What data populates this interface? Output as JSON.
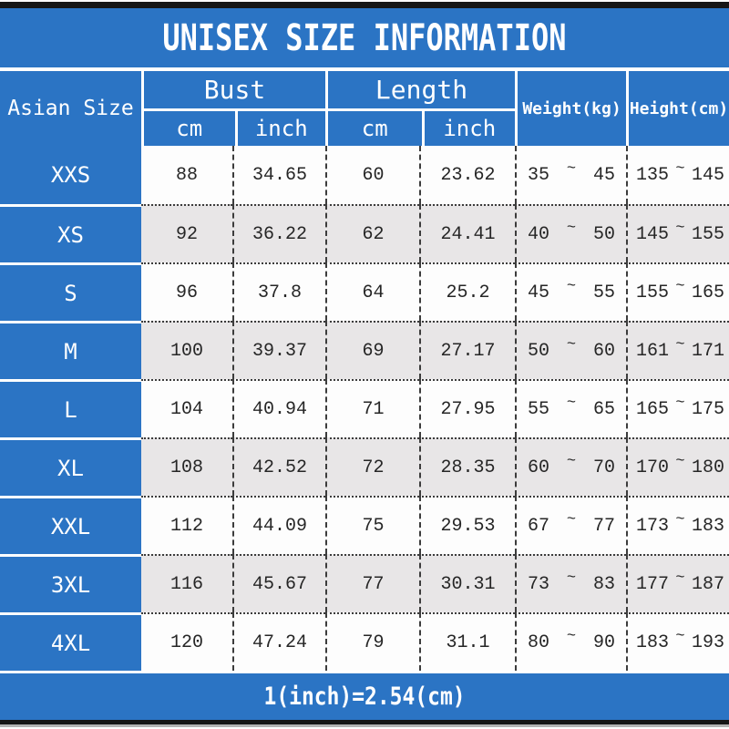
{
  "chart_data": {
    "type": "table",
    "title": "UNISEX SIZE INFORMATION",
    "columns": [
      "Asian Size",
      "Bust cm",
      "Bust inch",
      "Length cm",
      "Length inch",
      "Weight(kg)",
      "Height(cm)"
    ],
    "rows": [
      {
        "size": "XXS",
        "bust_cm": "88",
        "bust_inch": "34.65",
        "length_cm": "60",
        "length_inch": "23.62",
        "weight_min": "35",
        "weight_max": "45",
        "height_min": "135",
        "height_max": "145"
      },
      {
        "size": "XS",
        "bust_cm": "92",
        "bust_inch": "36.22",
        "length_cm": "62",
        "length_inch": "24.41",
        "weight_min": "40",
        "weight_max": "50",
        "height_min": "145",
        "height_max": "155"
      },
      {
        "size": "S",
        "bust_cm": "96",
        "bust_inch": "37.8",
        "length_cm": "64",
        "length_inch": "25.2",
        "weight_min": "45",
        "weight_max": "55",
        "height_min": "155",
        "height_max": "165"
      },
      {
        "size": "M",
        "bust_cm": "100",
        "bust_inch": "39.37",
        "length_cm": "69",
        "length_inch": "27.17",
        "weight_min": "50",
        "weight_max": "60",
        "height_min": "161",
        "height_max": "171"
      },
      {
        "size": "L",
        "bust_cm": "104",
        "bust_inch": "40.94",
        "length_cm": "71",
        "length_inch": "27.95",
        "weight_min": "55",
        "weight_max": "65",
        "height_min": "165",
        "height_max": "175"
      },
      {
        "size": "XL",
        "bust_cm": "108",
        "bust_inch": "42.52",
        "length_cm": "72",
        "length_inch": "28.35",
        "weight_min": "60",
        "weight_max": "70",
        "height_min": "170",
        "height_max": "180"
      },
      {
        "size": "XXL",
        "bust_cm": "112",
        "bust_inch": "44.09",
        "length_cm": "75",
        "length_inch": "29.53",
        "weight_min": "67",
        "weight_max": "77",
        "height_min": "173",
        "height_max": "183"
      },
      {
        "size": "3XL",
        "bust_cm": "116",
        "bust_inch": "45.67",
        "length_cm": "77",
        "length_inch": "30.31",
        "weight_min": "73",
        "weight_max": "83",
        "height_min": "177",
        "height_max": "187"
      },
      {
        "size": "4XL",
        "bust_cm": "120",
        "bust_inch": "47.24",
        "length_cm": "79",
        "length_inch": "31.1",
        "weight_min": "80",
        "weight_max": "90",
        "height_min": "183",
        "height_max": "193"
      }
    ]
  },
  "header": {
    "title": "UNISEX SIZE INFORMATION",
    "size_column": "Asian Size",
    "bust_label": "Bust",
    "length_label": "Length",
    "cm_label": "cm",
    "inch_label": "inch",
    "weight_label": "Weight(kg)",
    "height_label": "Height(cm)",
    "tilde": "~"
  },
  "footer": {
    "note": "1(inch)=2.54(cm)"
  },
  "colors": {
    "blue": "#2b74c4",
    "alt_row": "#e8e6e7",
    "white_row": "#fdfdfd",
    "grid_line": "#3c3c3c"
  }
}
